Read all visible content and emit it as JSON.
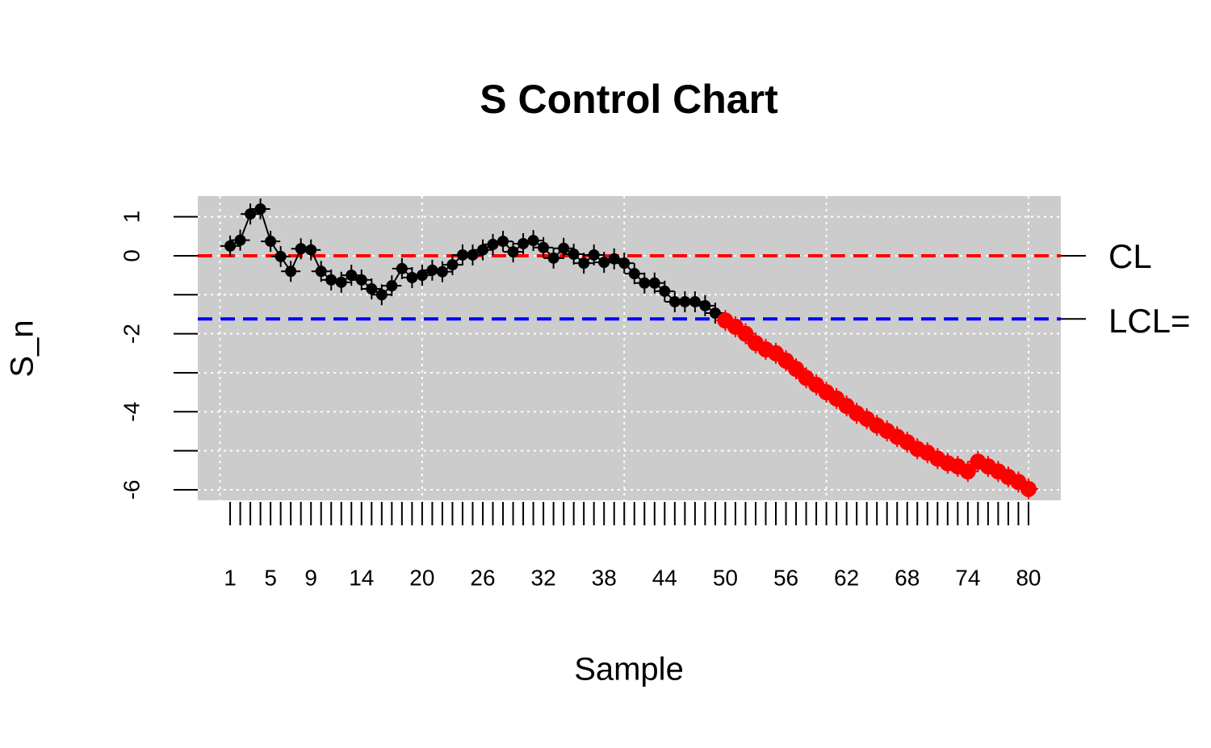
{
  "chart_data": {
    "type": "line",
    "title": "S Control Chart",
    "xlabel": "Sample",
    "ylabel": "S_n",
    "x": [
      1,
      2,
      3,
      4,
      5,
      6,
      7,
      8,
      9,
      10,
      11,
      12,
      13,
      14,
      15,
      16,
      17,
      18,
      19,
      20,
      21,
      22,
      23,
      24,
      25,
      26,
      27,
      28,
      29,
      30,
      31,
      32,
      33,
      34,
      35,
      36,
      37,
      38,
      39,
      40,
      41,
      42,
      43,
      44,
      45,
      46,
      47,
      48,
      49,
      50,
      51,
      52,
      53,
      54,
      55,
      56,
      57,
      58,
      59,
      60,
      61,
      62,
      63,
      64,
      65,
      66,
      67,
      68,
      69,
      70,
      71,
      72,
      73,
      74,
      75,
      76,
      77,
      78,
      79,
      80
    ],
    "values": [
      0.25,
      0.4,
      1.07,
      1.2,
      0.37,
      -0.02,
      -0.4,
      0.18,
      0.15,
      -0.4,
      -0.62,
      -0.68,
      -0.5,
      -0.62,
      -0.85,
      -1.0,
      -0.77,
      -0.33,
      -0.56,
      -0.5,
      -0.37,
      -0.41,
      -0.23,
      0.02,
      0.02,
      0.15,
      0.29,
      0.37,
      0.1,
      0.31,
      0.39,
      0.21,
      -0.06,
      0.19,
      0.04,
      -0.19,
      0.02,
      -0.17,
      -0.08,
      -0.19,
      -0.46,
      -0.7,
      -0.7,
      -0.91,
      -1.18,
      -1.18,
      -1.18,
      -1.28,
      -1.47,
      -1.66,
      -1.82,
      -2.0,
      -2.24,
      -2.4,
      -2.5,
      -2.69,
      -2.9,
      -3.13,
      -3.31,
      -3.5,
      -3.66,
      -3.85,
      -4.04,
      -4.18,
      -4.35,
      -4.49,
      -4.64,
      -4.78,
      -4.95,
      -5.05,
      -5.2,
      -5.32,
      -5.4,
      -5.53,
      -5.28,
      -5.4,
      -5.53,
      -5.67,
      -5.8,
      -5.98
    ],
    "color": "#000000",
    "out_color": "#ff0000",
    "cl": 0,
    "cl_label": "CL",
    "cl_color": "#ff0000",
    "lcl": -1.62,
    "lcl_label": "LCL=",
    "lcl_color": "#0000ff",
    "xlim": [
      -2.2,
      83.2
    ],
    "ylim": [
      -6.27,
      1.53
    ],
    "xticks": [
      1,
      5,
      9,
      14,
      20,
      26,
      32,
      38,
      44,
      50,
      56,
      62,
      68,
      74,
      80
    ],
    "yticks": [
      -6,
      -4,
      -2,
      0,
      1
    ],
    "yticks_unlabeled": [
      -5,
      -3,
      -1
    ],
    "xgrid": [
      0,
      20,
      40,
      60,
      80
    ],
    "ygrid": [
      -6,
      -5,
      -4,
      -3,
      -2,
      -1,
      0,
      1
    ],
    "grid": true,
    "background": "#cccccc"
  }
}
